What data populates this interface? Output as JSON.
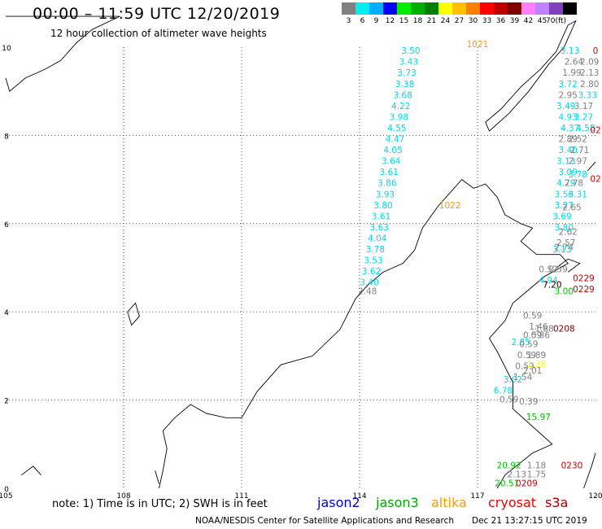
{
  "header": {
    "title": "00:00 – 11:59 UTC 12/20/2019",
    "subtitle": "12 hour collection of altimeter wave heights"
  },
  "legend": {
    "unit": "(ft)",
    "items": [
      {
        "color": "#808080",
        "label": "3"
      },
      {
        "color": "#00eeee",
        "label": "6"
      },
      {
        "color": "#00b0ff",
        "label": "9"
      },
      {
        "color": "#0000ff",
        "label": "12"
      },
      {
        "color": "#00ee00",
        "label": "15"
      },
      {
        "color": "#00b000",
        "label": "18"
      },
      {
        "color": "#008000",
        "label": "21"
      },
      {
        "color": "#ffff00",
        "label": "24"
      },
      {
        "color": "#ffc000",
        "label": "27"
      },
      {
        "color": "#ff8000",
        "label": "30"
      },
      {
        "color": "#ff0000",
        "label": "33"
      },
      {
        "color": "#c00000",
        "label": "36"
      },
      {
        "color": "#800000",
        "label": "39"
      },
      {
        "color": "#ff80ff",
        "label": "42"
      },
      {
        "color": "#c080ff",
        "label": "45"
      },
      {
        "color": "#8040c0",
        "label": "70"
      },
      {
        "color": "#000000",
        "label": ""
      }
    ]
  },
  "axes": {
    "x_ticks": [
      "105",
      "108",
      "111",
      "114",
      "117",
      "120"
    ],
    "y_ticks": [
      "0",
      "2",
      "4",
      "6",
      "8",
      "10"
    ]
  },
  "tracks": [
    {
      "color": "#ff9900",
      "points": [
        {
          "lon": 117.0,
          "lat": 10.0,
          "label": "1021"
        },
        {
          "lon": 116.3,
          "lat": 6.35,
          "label": "1022"
        }
      ]
    },
    {
      "color": "#00d8e8",
      "points": [
        {
          "lon": 115.3,
          "lat": 9.85,
          "label": "3.50"
        },
        {
          "lon": 115.25,
          "lat": 9.6,
          "label": "3.43"
        },
        {
          "lon": 115.2,
          "lat": 9.35,
          "label": "3.73"
        },
        {
          "lon": 115.15,
          "lat": 9.1,
          "label": "3.38"
        },
        {
          "lon": 115.1,
          "lat": 8.85,
          "label": "3.68"
        },
        {
          "lon": 115.05,
          "lat": 8.6,
          "label": "4.22"
        },
        {
          "lon": 115.0,
          "lat": 8.35,
          "label": "3.98"
        },
        {
          "lon": 114.95,
          "lat": 8.1,
          "label": "4.55"
        },
        {
          "lon": 114.9,
          "lat": 7.85,
          "label": "4.47"
        },
        {
          "lon": 114.85,
          "lat": 7.6,
          "label": "4.05"
        },
        {
          "lon": 114.8,
          "lat": 7.35,
          "label": "3.64"
        },
        {
          "lon": 114.75,
          "lat": 7.1,
          "label": "3.61"
        },
        {
          "lon": 114.7,
          "lat": 6.85,
          "label": "3.86"
        },
        {
          "lon": 114.65,
          "lat": 6.6,
          "label": "3.93"
        },
        {
          "lon": 114.6,
          "lat": 6.35,
          "label": "3.80"
        },
        {
          "lon": 114.55,
          "lat": 6.1,
          "label": "3.61"
        },
        {
          "lon": 114.5,
          "lat": 5.85,
          "label": "3.63"
        },
        {
          "lon": 114.45,
          "lat": 5.6,
          "label": "4.04"
        },
        {
          "lon": 114.4,
          "lat": 5.35,
          "label": "3.78"
        },
        {
          "lon": 114.35,
          "lat": 5.1,
          "label": "3.53"
        },
        {
          "lon": 114.3,
          "lat": 4.85,
          "label": "3.62"
        },
        {
          "lon": 114.25,
          "lat": 4.6,
          "label": "3.40"
        }
      ]
    },
    {
      "color": "#808080",
      "points": [
        {
          "lon": 114.2,
          "lat": 4.4,
          "label": "2.48"
        }
      ]
    },
    {
      "color": "#00d8e8",
      "points": [
        {
          "lon": 119.35,
          "lat": 9.85,
          "label": "3.13"
        },
        {
          "lon": 119.3,
          "lat": 9.1,
          "label": "3.72"
        },
        {
          "lon": 119.8,
          "lat": 8.85,
          "label": "3.33"
        },
        {
          "lon": 119.25,
          "lat": 8.6,
          "label": "3.49"
        },
        {
          "lon": 119.3,
          "lat": 8.35,
          "label": "4.93"
        },
        {
          "lon": 119.7,
          "lat": 8.35,
          "label": "3.27"
        },
        {
          "lon": 119.35,
          "lat": 8.1,
          "label": "4.37"
        },
        {
          "lon": 119.75,
          "lat": 8.1,
          "label": "4.58"
        },
        {
          "lon": 119.3,
          "lat": 7.6,
          "label": "3.40"
        },
        {
          "lon": 119.25,
          "lat": 7.35,
          "label": "3.13"
        },
        {
          "lon": 119.3,
          "lat": 7.1,
          "label": "3.09"
        },
        {
          "lon": 119.55,
          "lat": 7.05,
          "label": "3.78"
        },
        {
          "lon": 119.25,
          "lat": 6.85,
          "label": "4.79"
        },
        {
          "lon": 119.2,
          "lat": 6.6,
          "label": "3.56"
        },
        {
          "lon": 119.55,
          "lat": 6.6,
          "label": "3.31"
        },
        {
          "lon": 119.2,
          "lat": 6.35,
          "label": "3.27"
        },
        {
          "lon": 119.15,
          "lat": 6.1,
          "label": "3.69"
        },
        {
          "lon": 119.2,
          "lat": 5.85,
          "label": "3.80"
        },
        {
          "lon": 119.15,
          "lat": 5.35,
          "label": "3.13"
        },
        {
          "lon": 118.8,
          "lat": 4.65,
          "label": "4.94"
        },
        {
          "lon": 118.1,
          "lat": 3.25,
          "label": "2.85"
        },
        {
          "lon": 117.9,
          "lat": 2.4,
          "label": "3.02"
        },
        {
          "lon": 117.65,
          "lat": 2.15,
          "label": "6.78"
        }
      ]
    },
    {
      "color": "#808080",
      "points": [
        {
          "lon": 119.45,
          "lat": 9.6,
          "label": "2.64"
        },
        {
          "lon": 119.85,
          "lat": 9.6,
          "label": "2.09"
        },
        {
          "lon": 119.4,
          "lat": 9.35,
          "label": "1.99"
        },
        {
          "lon": 119.85,
          "lat": 9.35,
          "label": "2.13"
        },
        {
          "lon": 119.85,
          "lat": 9.1,
          "label": "2.80"
        },
        {
          "lon": 119.3,
          "lat": 8.85,
          "label": "2.95"
        },
        {
          "lon": 119.7,
          "lat": 8.6,
          "label": "3.17"
        },
        {
          "lon": 119.3,
          "lat": 7.85,
          "label": "2.89"
        },
        {
          "lon": 119.55,
          "lat": 7.85,
          "label": "2.52"
        },
        {
          "lon": 119.6,
          "lat": 7.6,
          "label": "2.71"
        },
        {
          "lon": 119.55,
          "lat": 7.35,
          "label": "2.97"
        },
        {
          "lon": 119.45,
          "lat": 6.85,
          "label": "2.78"
        },
        {
          "lon": 119.4,
          "lat": 6.3,
          "label": "2.65"
        },
        {
          "lon": 119.3,
          "lat": 5.75,
          "label": "2.62"
        },
        {
          "lon": 119.25,
          "lat": 5.5,
          "label": "2.57"
        },
        {
          "lon": 119.2,
          "lat": 5.4,
          "label": "2.74"
        },
        {
          "lon": 118.8,
          "lat": 4.9,
          "label": "0.52"
        },
        {
          "lon": 119.05,
          "lat": 4.9,
          "label": "0.59"
        },
        {
          "lon": 118.4,
          "lat": 3.85,
          "label": "0.59"
        },
        {
          "lon": 118.55,
          "lat": 3.6,
          "label": "1.46"
        },
        {
          "lon": 118.7,
          "lat": 3.55,
          "label": "1.88"
        },
        {
          "lon": 118.4,
          "lat": 3.4,
          "label": "0.59"
        },
        {
          "lon": 118.6,
          "lat": 3.4,
          "label": "0.86"
        },
        {
          "lon": 118.3,
          "lat": 3.2,
          "label": "0.59"
        },
        {
          "lon": 118.25,
          "lat": 2.95,
          "label": "0.59"
        },
        {
          "lon": 118.5,
          "lat": 2.95,
          "label": "1.89"
        },
        {
          "lon": 118.2,
          "lat": 2.7,
          "label": "0.59"
        },
        {
          "lon": 118.4,
          "lat": 2.6,
          "label": "2.01"
        },
        {
          "lon": 118.15,
          "lat": 2.45,
          "label": "1.54"
        },
        {
          "lon": 117.8,
          "lat": 1.95,
          "label": "0.59"
        },
        {
          "lon": 118.3,
          "lat": 1.9,
          "label": "0.39"
        },
        {
          "lon": 118.5,
          "lat": 0.45,
          "label": "1.18"
        },
        {
          "lon": 118.0,
          "lat": 0.25,
          "label": "2.13"
        },
        {
          "lon": 118.5,
          "lat": 0.25,
          "label": "1.75"
        }
      ]
    },
    {
      "color": "#000000",
      "points": [
        {
          "lon": 118.9,
          "lat": 4.55,
          "label": "7.20"
        }
      ]
    },
    {
      "color": "#00c000",
      "points": [
        {
          "lon": 119.2,
          "lat": 4.4,
          "label": "3.00"
        },
        {
          "lon": 118.55,
          "lat": 1.55,
          "label": "15.97"
        },
        {
          "lon": 117.8,
          "lat": 0.45,
          "label": "20.92"
        },
        {
          "lon": 117.75,
          "lat": 0.05,
          "label": "20.51"
        }
      ]
    },
    {
      "color": "#ffff00",
      "points": [
        {
          "lon": 118.5,
          "lat": 2.75,
          "label": "1.38"
        }
      ]
    },
    {
      "color": "#cc0000",
      "points": [
        {
          "lon": 120.0,
          "lat": 9.85,
          "label": "0"
        },
        {
          "lon": 120.0,
          "lat": 8.05,
          "label": "02"
        },
        {
          "lon": 120.0,
          "lat": 6.95,
          "label": "02"
        },
        {
          "lon": 119.7,
          "lat": 4.7,
          "label": "0229"
        },
        {
          "lon": 119.7,
          "lat": 4.45,
          "label": "0229"
        },
        {
          "lon": 119.4,
          "lat": 0.45,
          "label": "0230"
        },
        {
          "lon": 118.25,
          "lat": 0.05,
          "label": "0209"
        }
      ]
    },
    {
      "color": "#800000",
      "points": [
        {
          "lon": 119.2,
          "lat": 3.55,
          "label": "0208"
        }
      ]
    }
  ],
  "note": "note: 1) Time is in UTC; 2) SWH is in feet",
  "satellites": [
    {
      "name": "jason2",
      "color": "#0000dd"
    },
    {
      "name": "jason3",
      "color": "#00aa00"
    },
    {
      "name": "altika",
      "color": "#ff9900"
    },
    {
      "name": "cryosat",
      "color": "#ee0000"
    },
    {
      "name": "s3a",
      "color": "#aa0000"
    }
  ],
  "footer": {
    "source": "NOAA/NESDIS Center for Satellite Applications and Research",
    "timestamp": "Dec 21 13:27:15 UTC 2019"
  }
}
